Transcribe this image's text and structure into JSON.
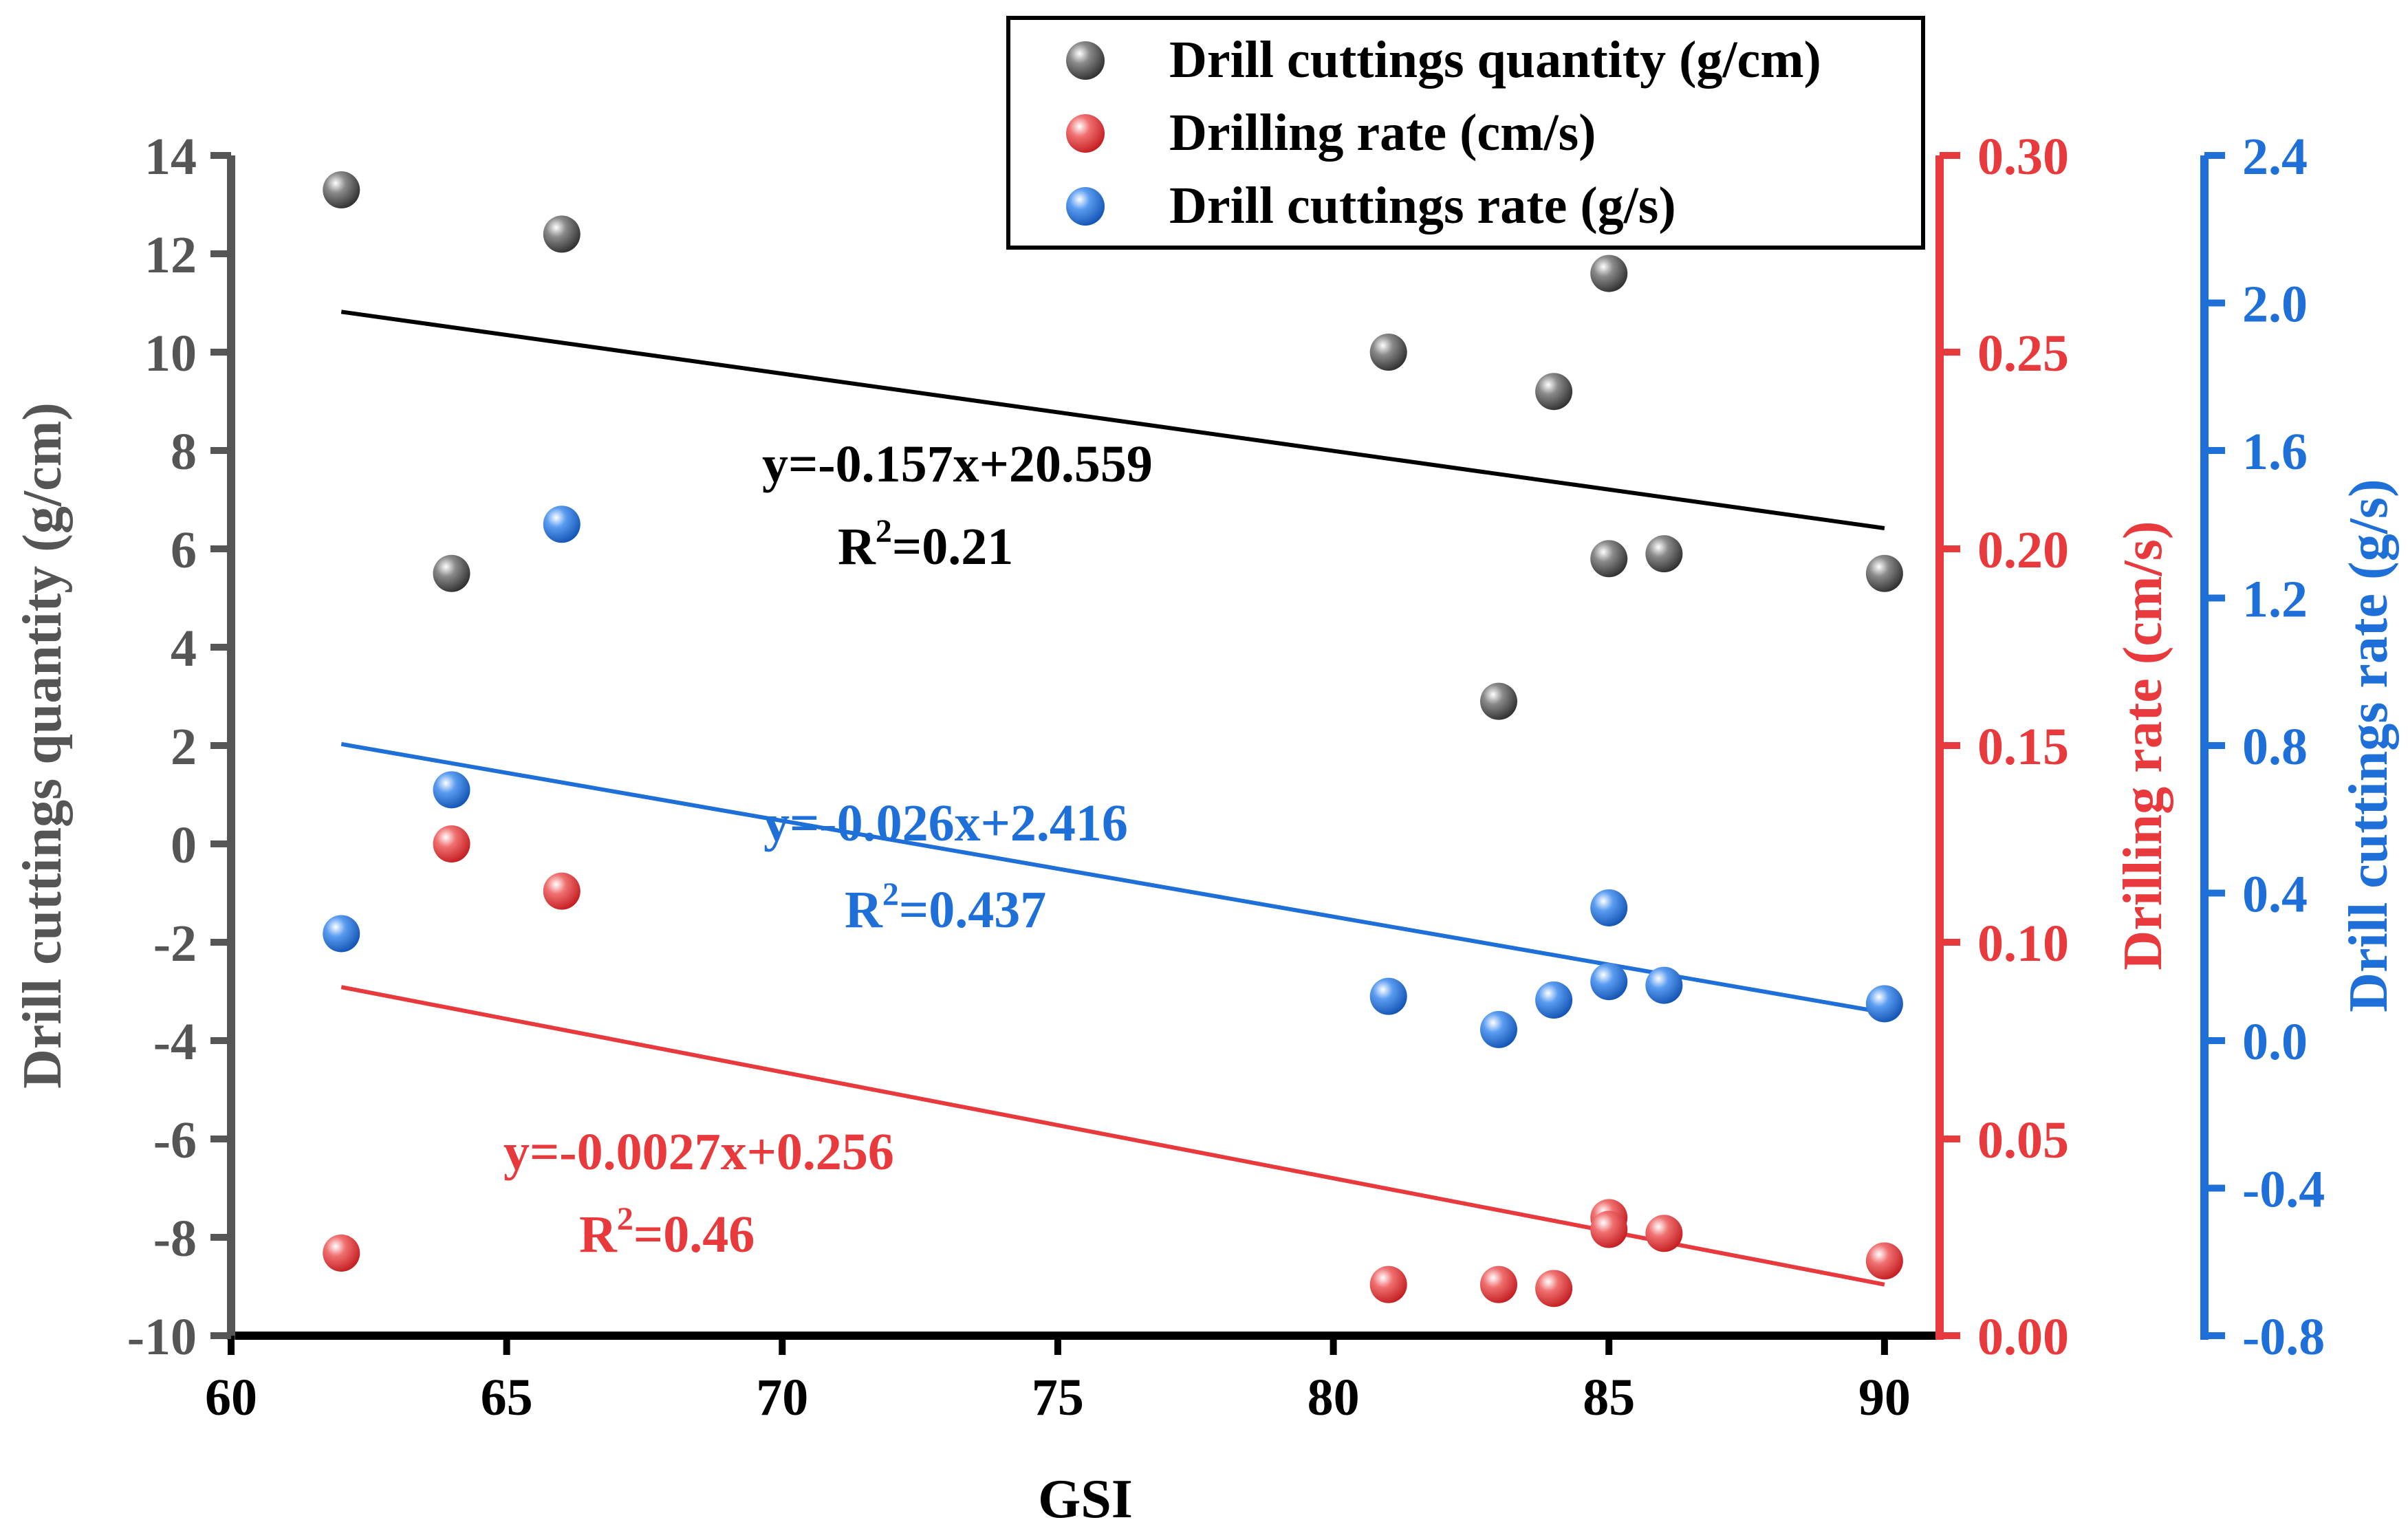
{
  "chart_data": {
    "type": "scatter",
    "title": "",
    "xlabel": "GSI",
    "x_ticks": [
      60,
      65,
      70,
      75,
      80,
      85,
      90
    ],
    "xlim": [
      60,
      91
    ],
    "axes": {
      "left": {
        "label": "Drill cuttings quantity (g/cm)",
        "ylim": [
          -10,
          14
        ],
        "ticks": [
          -10,
          -8,
          -6,
          -4,
          -2,
          0,
          2,
          4,
          6,
          8,
          10,
          12,
          14
        ],
        "tick_labels": [
          "-10",
          "-8",
          "-6",
          "-4",
          "-2",
          "0",
          "2",
          "4",
          "6",
          "8",
          "10",
          "12",
          "14"
        ],
        "color": "#555555"
      },
      "right": {
        "label": "Drilling rate (cm/s)",
        "ylim": [
          0.0,
          0.3
        ],
        "ticks": [
          0.0,
          0.05,
          0.1,
          0.15,
          0.2,
          0.25,
          0.3
        ],
        "tick_labels": [
          "0.00",
          "0.05",
          "0.10",
          "0.15",
          "0.20",
          "0.25",
          "0.30"
        ],
        "color": "#e8393d"
      },
      "right2": {
        "label": "Drill cuttings rate (g/s)",
        "ylim": [
          -0.8,
          2.4
        ],
        "ticks": [
          -0.8,
          -0.4,
          0.0,
          0.4,
          0.8,
          1.2,
          1.6,
          2.0,
          2.4
        ],
        "tick_labels": [
          "-0.8",
          "-0.4",
          "0.0",
          "0.4",
          "0.8",
          "1.2",
          "1.6",
          "2.0",
          "2.4"
        ],
        "color": "#1f6fd8"
      }
    },
    "series": [
      {
        "name": "Drill cuttings quantity (g/cm)",
        "axis": "left",
        "color": "#454545",
        "x": [
          62,
          64,
          66,
          81,
          83,
          84,
          85,
          85,
          86,
          90
        ],
        "y": [
          13.3,
          5.5,
          12.4,
          10.0,
          2.9,
          9.2,
          11.6,
          5.8,
          5.9,
          5.5
        ],
        "fit": {
          "x": [
            62,
            90
          ],
          "y": [
            10.82,
            6.42
          ]
        },
        "equation": "y=-0.157x+20.559",
        "r2_value": "=0.21",
        "equation_color": "#000000"
      },
      {
        "name": "Drilling rate (cm/s)",
        "axis": "right",
        "color": "#e8393d",
        "x": [
          62,
          64,
          66,
          81,
          83,
          84,
          85,
          85,
          86,
          90
        ],
        "y": [
          0.021,
          0.125,
          0.113,
          0.013,
          0.013,
          0.012,
          0.03,
          0.027,
          0.026,
          0.019
        ],
        "fit": {
          "x": [
            62,
            90
          ],
          "y": [
            0.0886,
            0.013
          ]
        },
        "equation": "y=-0.0027x+0.256",
        "r2_value": "=0.46",
        "equation_color": "#e8393d"
      },
      {
        "name": "Drill cuttings rate (g/s)",
        "axis": "right2",
        "color": "#1f6fd8",
        "x": [
          62,
          64,
          66,
          81,
          83,
          84,
          85,
          85,
          86,
          90
        ],
        "y": [
          0.29,
          0.68,
          1.4,
          0.12,
          0.03,
          0.11,
          0.36,
          0.16,
          0.15,
          0.1
        ],
        "fit": {
          "x": [
            62,
            90
          ],
          "y": [
            0.804,
            0.076
          ]
        },
        "equation": "y=-0.026x+2.416",
        "r2_value": "=0.437",
        "equation_color": "#1f6fd8"
      }
    ],
    "r2_prefix": "R",
    "r2_superscript": "2",
    "legend": {
      "position": "top-right",
      "entries": [
        "Drill cuttings quantity (g/cm)",
        "Drilling rate (cm/s)",
        "Drill cuttings rate (g/s)"
      ]
    }
  }
}
